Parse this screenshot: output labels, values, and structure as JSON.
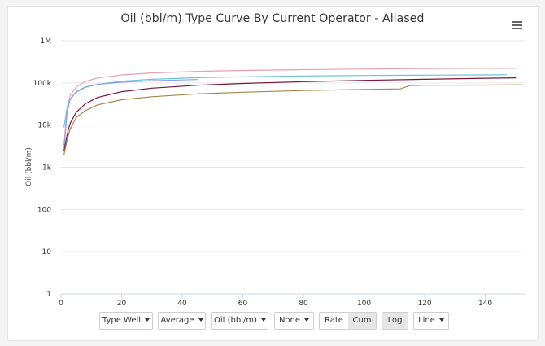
{
  "chart_data": {
    "type": "line",
    "title": "Oil (bbl/m) Type Curve By Current Operator - Aliased",
    "xlabel": "",
    "ylabel": "Oil (bbl/m)",
    "xlim": [
      0,
      153
    ],
    "ylim": [
      1,
      1000000
    ],
    "y_scale": "log",
    "x_ticks": [
      0,
      20,
      40,
      60,
      80,
      100,
      120,
      140
    ],
    "y_ticks": [
      1,
      10,
      100,
      1000,
      10000,
      100000,
      1000000
    ],
    "y_tick_labels": [
      "1",
      "10",
      "100",
      "1k",
      "10k",
      "100k",
      "1M"
    ],
    "grid": true,
    "series": [
      {
        "color": "#e8a0ae",
        "x": [
          1,
          2,
          3,
          5,
          8,
          12,
          20,
          30,
          45,
          60,
          80,
          100,
          120,
          140
        ],
        "values": [
          3500,
          25000,
          50000,
          80000,
          108000,
          130000,
          155000,
          172000,
          188000,
          198000,
          207000,
          214000,
          219000,
          223000
        ]
      },
      {
        "color": "#f0c6cc",
        "x": [
          140,
          145,
          150
        ],
        "values": [
          218000,
          219000,
          220000
        ]
      },
      {
        "color": "#6ec1dc",
        "x": [
          1,
          2,
          3,
          5,
          8,
          12,
          20,
          30,
          45,
          60,
          80,
          100,
          120,
          140,
          147
        ],
        "values": [
          9000,
          26000,
          42000,
          60000,
          78000,
          92000,
          110000,
          122000,
          133000,
          140000,
          146000,
          150000,
          153000,
          155000,
          156000
        ]
      },
      {
        "color": "#8fa0e6",
        "x": [
          1,
          2,
          3,
          5,
          8,
          12,
          20,
          30,
          45
        ],
        "values": [
          3000,
          20000,
          40000,
          62000,
          80000,
          92000,
          104000,
          113000,
          120000
        ]
      },
      {
        "color": "#7a1538",
        "x": [
          1,
          2,
          3,
          5,
          8,
          12,
          20,
          30,
          45,
          60,
          80,
          100,
          120,
          140,
          150
        ],
        "values": [
          2500,
          6000,
          11000,
          20000,
          32000,
          45000,
          62000,
          75000,
          88000,
          97000,
          107000,
          115000,
          122000,
          129000,
          132000
        ]
      },
      {
        "color": "#a8864f",
        "x": [
          1,
          2,
          3,
          5,
          8,
          12,
          20,
          30,
          45,
          60,
          80,
          100,
          112,
          115,
          120,
          140,
          152
        ],
        "values": [
          2000,
          4500,
          8000,
          15000,
          22000,
          30000,
          40000,
          47000,
          55000,
          60000,
          66000,
          70000,
          72000,
          86000,
          88000,
          89000,
          90000
        ]
      }
    ]
  },
  "toolbar": {
    "type_well": "Type Well",
    "average": "Average",
    "oil": "Oil (bbl/m)",
    "none": "None",
    "rate": "Rate",
    "cum": "Cum",
    "log": "Log",
    "line": "Line"
  }
}
